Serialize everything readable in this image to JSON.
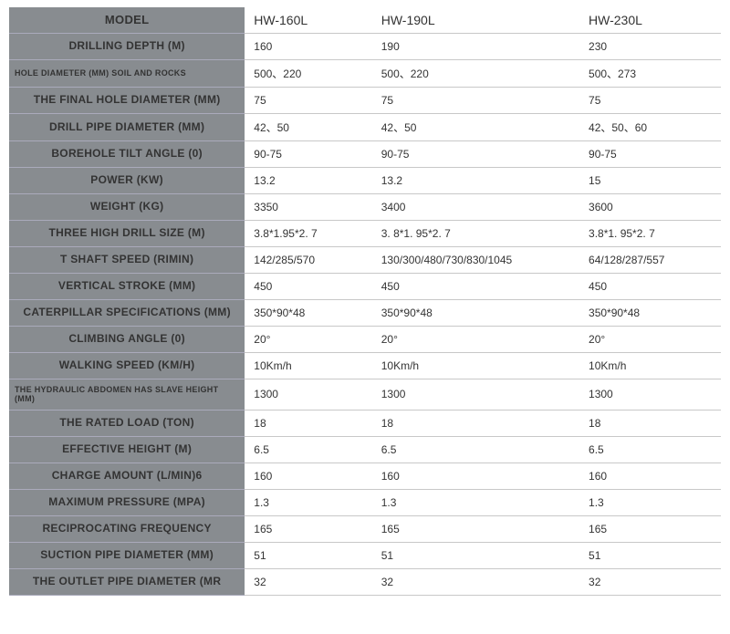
{
  "columns": [
    "HW-160L",
    "HW-190L",
    "HW-230L"
  ],
  "rows": [
    {
      "label": "MODEL",
      "labelClass": "model",
      "values": [
        "HW-160L",
        "HW-190L",
        "HW-230L"
      ],
      "header": true
    },
    {
      "label": "DRILLING DEPTH (M)",
      "labelClass": "depth",
      "values": [
        "160",
        "190",
        "230"
      ]
    },
    {
      "label": "HOLE DIAMETER (MM) SOIL AND ROCKS",
      "labelClass": "twoLine",
      "values": [
        "500、220",
        "500、220",
        "500、273"
      ]
    },
    {
      "label": "THE FINAL HOLE DIAMETER (MM)",
      "values": [
        "75",
        "75",
        "75"
      ]
    },
    {
      "label": "DRILL PIPE DIAMETER (MM)",
      "values": [
        "42、50",
        "42、50",
        "42、50、60"
      ]
    },
    {
      "label": "BOREHOLE TILT ANGLE (0)",
      "values": [
        "90-75",
        "90-75",
        "90-75"
      ]
    },
    {
      "label": "POWER (KW)",
      "values": [
        "13.2",
        "13.2",
        "15"
      ]
    },
    {
      "label": "WEIGHT (KG)",
      "values": [
        "3350",
        "3400",
        "3600"
      ]
    },
    {
      "label": "THREE HIGH DRILL SIZE (M)",
      "values": [
        "3.8*1.95*2. 7",
        "3. 8*1. 95*2. 7",
        "3.8*1. 95*2. 7"
      ]
    },
    {
      "label": "T SHAFT SPEED (RIMIN)",
      "values": [
        "142/285/570",
        "130/300/480/730/830/1045",
        "64/128/287/557"
      ]
    },
    {
      "label": "VERTICAL STROKE (MM)",
      "values": [
        "450",
        "450",
        "450"
      ]
    },
    {
      "label": "CATERPILLAR SPECIFICATIONS (MM)",
      "values": [
        "350*90*48",
        "350*90*48",
        "350*90*48"
      ]
    },
    {
      "label": "CLIMBING ANGLE (0)",
      "values": [
        "20°",
        "20°",
        "20°"
      ]
    },
    {
      "label": "WALKING SPEED (KM/H)",
      "values": [
        "10Km/h",
        "10Km/h",
        "10Km/h"
      ]
    },
    {
      "label": "THE HYDRAULIC ABDOMEN HAS SLAVE HEIGHT (MM)",
      "labelClass": "twoLine",
      "values": [
        "1300",
        "1300",
        "1300"
      ]
    },
    {
      "label": "THE RATED LOAD (TON)",
      "values": [
        "18",
        "18",
        "18"
      ]
    },
    {
      "label": "EFFECTIVE HEIGHT (M)",
      "values": [
        "6.5",
        "6.5",
        "6.5"
      ]
    },
    {
      "label": "CHARGE AMOUNT (L/MIN)6",
      "values": [
        "160",
        "160",
        "160"
      ]
    },
    {
      "label": "MAXIMUM PRESSURE (MPA)",
      "values": [
        "1.3",
        "1.3",
        "1.3"
      ]
    },
    {
      "label": "RECIPROCATING FREQUENCY",
      "values": [
        "165",
        "165",
        "165"
      ]
    },
    {
      "label": "SUCTION PIPE DIAMETER (MM)",
      "values": [
        "51",
        "51",
        "51"
      ]
    },
    {
      "label": "THE OUTLET PIPE DIAMETER (MR",
      "values": [
        "32",
        "32",
        "32"
      ]
    }
  ],
  "style": {
    "label_bg": "#888c90",
    "label_fg": "#ffffff",
    "cell_bg": "#ffffff",
    "cell_fg": "#222222",
    "row_border": "#c8c8c8"
  }
}
